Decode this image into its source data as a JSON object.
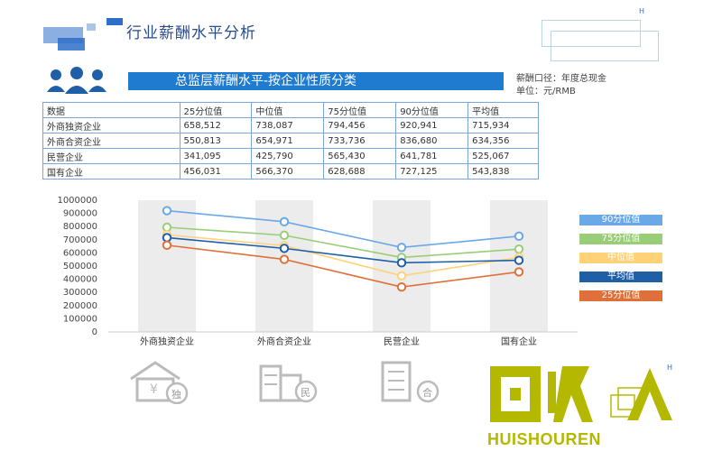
{
  "header": {
    "title": "行业薪酬水平分析",
    "corner_mark": "H"
  },
  "section": {
    "banner": "总监层薪酬水平-按企业性质分类",
    "meta_line1": "薪酬口径：年度总现金",
    "meta_line2": "单位：元/RMB"
  },
  "table": {
    "headers": [
      "数据",
      "25分位值",
      "中位值",
      "75分位值",
      "90分位值",
      "平均值"
    ],
    "rows": [
      [
        "外商独资企业",
        "658,512",
        "738,087",
        "794,456",
        "920,941",
        "715,934"
      ],
      [
        "外商合资企业",
        "550,813",
        "654,971",
        "733,736",
        "836,680",
        "634,356"
      ],
      [
        "民营企业",
        "341,095",
        "425,790",
        "565,430",
        "641,781",
        "525,067"
      ],
      [
        "国有企业",
        "456,031",
        "566,370",
        "628,688",
        "727,125",
        "543,838"
      ]
    ]
  },
  "chart_data": {
    "type": "line",
    "categories": [
      "外商独资企业",
      "外商合资企业",
      "民营企业",
      "国有企业"
    ],
    "ylim": [
      0,
      1000000
    ],
    "yticks": [
      "0",
      "100000",
      "200000",
      "300000",
      "400000",
      "500000",
      "600000",
      "700000",
      "800000",
      "900000",
      "1000000"
    ],
    "series": [
      {
        "name": "90分位值",
        "values": [
          920941,
          836680,
          641781,
          727125
        ],
        "color": "#6aa8e8"
      },
      {
        "name": "75分位值",
        "values": [
          794456,
          733736,
          565430,
          628688
        ],
        "color": "#9acd78"
      },
      {
        "name": "中位值",
        "values": [
          738087,
          654971,
          425790,
          566370
        ],
        "color": "#ffd27a"
      },
      {
        "name": "平均值",
        "values": [
          715934,
          634356,
          525067,
          543838
        ],
        "color": "#1f5fa8"
      },
      {
        "name": "25分位值",
        "values": [
          658512,
          550813,
          341095,
          456031
        ],
        "color": "#e0703a"
      }
    ],
    "grid": false,
    "legend": "right"
  },
  "logo": {
    "text": "HUISHOUREN"
  },
  "bottom_icons": {
    "icon1_text": "独",
    "icon2_text": "民",
    "icon3_text": "合"
  }
}
